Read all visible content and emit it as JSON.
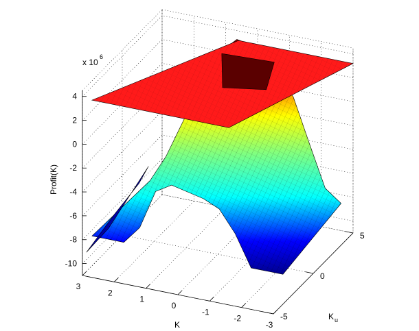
{
  "chart_data": {
    "type": "surface",
    "title": "",
    "zlabel": "Profit(K)",
    "xlabel": "K",
    "ylabel_base": "K",
    "ylabel_sub": "u",
    "z_exponent_label": "x 10",
    "z_exponent_power": "6",
    "z_multiplier": 1000000,
    "zlim": [
      -11,
      4.5
    ],
    "xlim": [
      -3,
      3
    ],
    "ylim": [
      -5,
      5
    ],
    "z_ticks": [
      {
        "value": 4,
        "label": "4"
      },
      {
        "value": 2,
        "label": "2"
      },
      {
        "value": 0,
        "label": "0"
      },
      {
        "value": -2,
        "label": "-2"
      },
      {
        "value": -4,
        "label": "-4"
      },
      {
        "value": -6,
        "label": "-6"
      },
      {
        "value": -8,
        "label": "-8"
      },
      {
        "value": -10,
        "label": "-10"
      }
    ],
    "x_ticks": [
      {
        "value": 3,
        "label": "3"
      },
      {
        "value": 2,
        "label": "2"
      },
      {
        "value": 1,
        "label": "1"
      },
      {
        "value": 0,
        "label": "0"
      },
      {
        "value": -1,
        "label": "-1"
      },
      {
        "value": -2,
        "label": "-2"
      },
      {
        "value": -3,
        "label": "-3"
      }
    ],
    "y_ticks": [
      {
        "value": -5,
        "label": "-5"
      },
      {
        "value": 0,
        "label": "0"
      },
      {
        "value": 5,
        "label": "5"
      }
    ],
    "grid": true,
    "colormap": "jet",
    "plane": {
      "z": 3.2,
      "color": "#ff1a1a"
    },
    "surface_ridge_profile": [
      {
        "k": 3.0,
        "z": -8.8
      },
      {
        "k": 2.5,
        "z": -6.5
      },
      {
        "k": 2.0,
        "z": -3.5
      },
      {
        "k": 1.5,
        "z": -0.5
      },
      {
        "k": 1.0,
        "z": 2.8
      },
      {
        "k": 0.5,
        "z": 3.6
      },
      {
        "k": 0.0,
        "z": 3.3
      },
      {
        "k": -0.5,
        "z": 3.0
      },
      {
        "k": -1.0,
        "z": 2.4
      },
      {
        "k": -1.5,
        "z": 0.6
      },
      {
        "k": -2.0,
        "z": -3.0
      },
      {
        "k": -2.5,
        "z": -6.5
      },
      {
        "k": -3.0,
        "z": -7.5
      }
    ]
  }
}
